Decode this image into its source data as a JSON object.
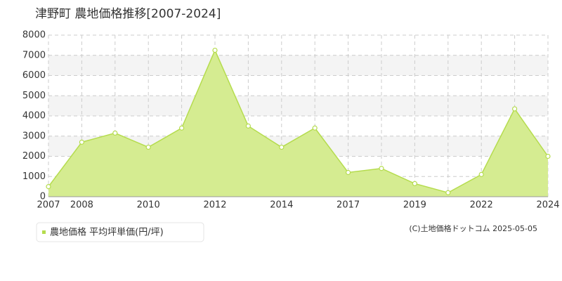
{
  "chart_data": {
    "type": "area",
    "title": "津野町 農地価格推移[2007-2024]",
    "categories": [
      "2007",
      "2008",
      null,
      "2010",
      null,
      "2012",
      null,
      "2014",
      null,
      "2017",
      null,
      "2019",
      null,
      "2022",
      null,
      "2024"
    ],
    "series": [
      {
        "name": "農地価格 平均坪単価(円/坪)",
        "color": "#b5dc4e",
        "fill": "#d5ec91",
        "values": [
          500,
          2700,
          3150,
          2450,
          3400,
          7250,
          3500,
          2450,
          3400,
          1200,
          1400,
          650,
          200,
          1100,
          4350,
          2000
        ]
      }
    ],
    "ylim": [
      0,
      8000
    ],
    "yticks": [
      0,
      1000,
      2000,
      3000,
      4000,
      5000,
      6000,
      7000,
      8000
    ],
    "grid": true,
    "legend": "bottom-left",
    "credit": "(C)土地価格ドットコム 2025-05-05"
  }
}
